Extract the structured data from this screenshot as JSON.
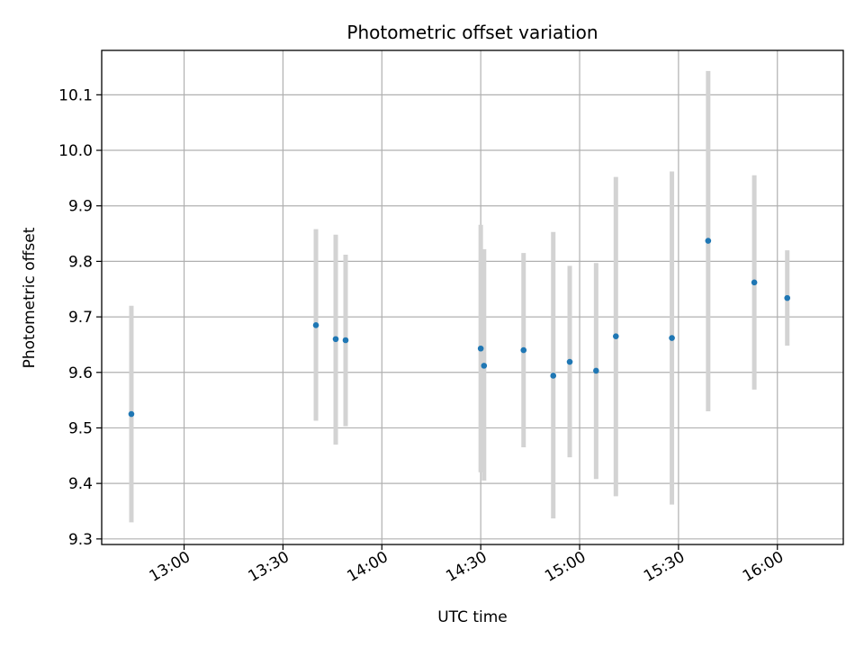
{
  "chart_data": {
    "type": "scatter",
    "title": "Photometric offset variation",
    "xlabel": "UTC time",
    "ylabel": "Photometric offset",
    "x_ticks": [
      "13:00",
      "13:30",
      "14:00",
      "14:30",
      "15:00",
      "15:30",
      "16:00"
    ],
    "y_ticks": [
      "9.3",
      "9.4",
      "9.5",
      "9.6",
      "9.7",
      "9.8",
      "9.9",
      "10.0",
      "10.1"
    ],
    "xlim": [
      "12:35",
      "16:20"
    ],
    "ylim": [
      9.29,
      10.18
    ],
    "grid": true,
    "point_color": "#1f77b4",
    "errorbar_color": "#d3d3d3",
    "points": [
      {
        "x": "12:44",
        "y": 9.525,
        "y_low": 9.33,
        "y_high": 9.72
      },
      {
        "x": "13:40",
        "y": 9.685,
        "y_low": 9.513,
        "y_high": 9.858
      },
      {
        "x": "13:46",
        "y": 9.66,
        "y_low": 9.47,
        "y_high": 9.848
      },
      {
        "x": "13:49",
        "y": 9.658,
        "y_low": 9.503,
        "y_high": 9.812
      },
      {
        "x": "14:30",
        "y": 9.643,
        "y_low": 9.42,
        "y_high": 9.866
      },
      {
        "x": "14:31",
        "y": 9.612,
        "y_low": 9.405,
        "y_high": 9.822
      },
      {
        "x": "14:43",
        "y": 9.64,
        "y_low": 9.465,
        "y_high": 9.815
      },
      {
        "x": "14:52",
        "y": 9.594,
        "y_low": 9.337,
        "y_high": 9.853
      },
      {
        "x": "14:57",
        "y": 9.619,
        "y_low": 9.447,
        "y_high": 9.792
      },
      {
        "x": "15:05",
        "y": 9.603,
        "y_low": 9.408,
        "y_high": 9.797
      },
      {
        "x": "15:11",
        "y": 9.665,
        "y_low": 9.377,
        "y_high": 9.952
      },
      {
        "x": "15:28",
        "y": 9.662,
        "y_low": 9.362,
        "y_high": 9.962
      },
      {
        "x": "15:39",
        "y": 9.837,
        "y_low": 9.53,
        "y_high": 10.143
      },
      {
        "x": "15:53",
        "y": 9.762,
        "y_low": 9.569,
        "y_high": 9.955
      },
      {
        "x": "16:03",
        "y": 9.734,
        "y_low": 9.648,
        "y_high": 9.82
      }
    ]
  }
}
